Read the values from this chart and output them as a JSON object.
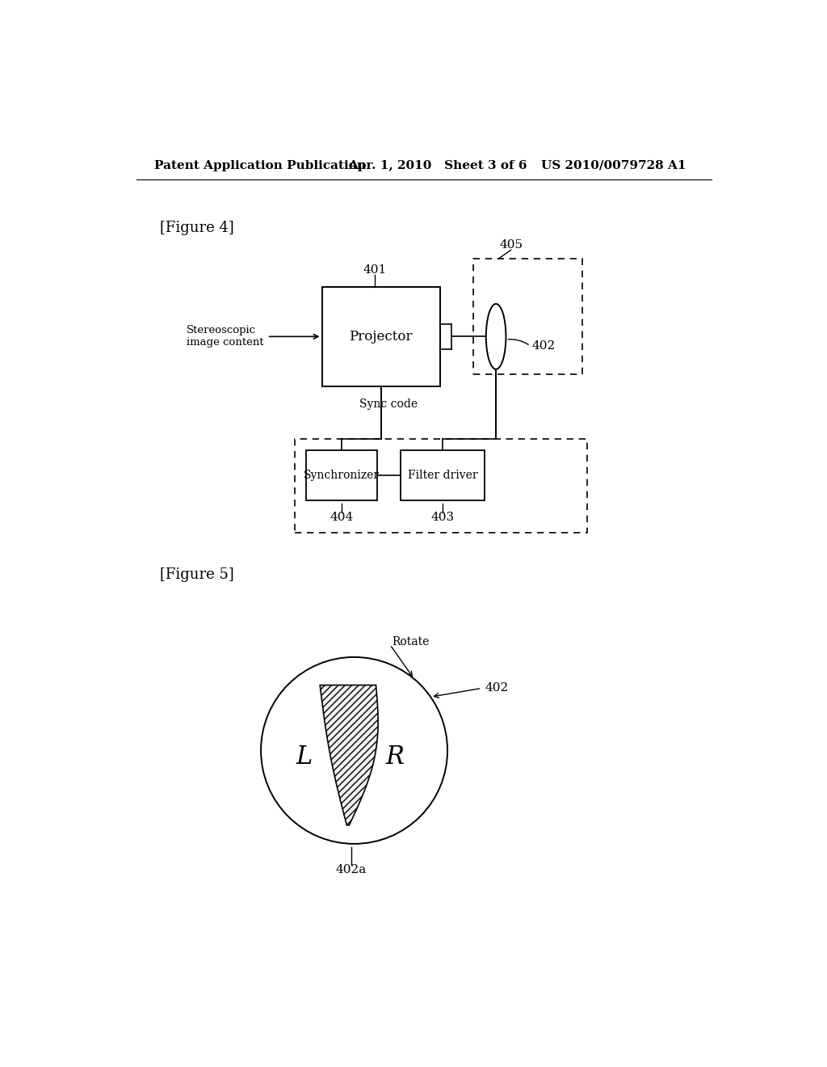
{
  "bg_color": "#ffffff",
  "header_left": "Patent Application Publication",
  "header_mid": "Apr. 1, 2010   Sheet 3 of 6",
  "header_right": "US 2010/0079728 A1",
  "fig4_label": "[Figure 4]",
  "fig5_label": "[Figure 5]",
  "projector_label": "Projector",
  "projector_ref": "401",
  "input_label": "Stereoscopic\nimage content",
  "sync_label": "Sync code",
  "synchronizer_label": "Synchronizer",
  "synchronizer_ref": "404",
  "filter_driver_label": "Filter driver",
  "filter_driver_ref": "403",
  "filter_module_ref": "402",
  "dashed_box_ref": "405",
  "fig5_circle_ref": "402",
  "fig5_blade_ref": "402a",
  "fig5_rotate_label": "Rotate",
  "fig5_L": "L",
  "fig5_R": "R"
}
